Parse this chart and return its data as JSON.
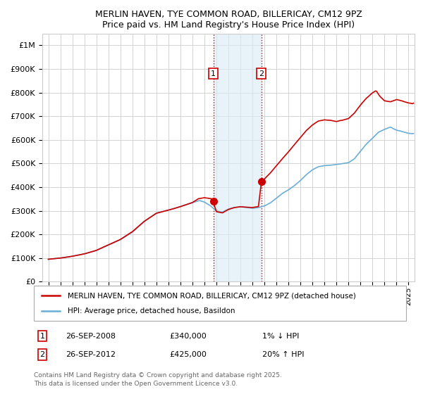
{
  "title": "MERLIN HAVEN, TYE COMMON ROAD, BILLERICAY, CM12 9PZ",
  "subtitle": "Price paid vs. HM Land Registry's House Price Index (HPI)",
  "ylim": [
    0,
    1050000
  ],
  "yticks": [
    0,
    100000,
    200000,
    300000,
    400000,
    500000,
    600000,
    700000,
    800000,
    900000,
    1000000
  ],
  "ytick_labels": [
    "£0",
    "£100K",
    "£200K",
    "£300K",
    "£400K",
    "£500K",
    "£600K",
    "£700K",
    "£800K",
    "£900K",
    "£1M"
  ],
  "background_color": "#ffffff",
  "grid_color": "#cccccc",
  "sale1_x": 2008.74,
  "sale1_price": 340000,
  "sale1_label": "1",
  "sale1_date_str": "26-SEP-2008",
  "sale1_pct_str": "1% ↓ HPI",
  "sale2_x": 2012.74,
  "sale2_price": 425000,
  "sale2_label": "2",
  "sale2_date_str": "26-SEP-2012",
  "sale2_pct_str": "20% ↑ HPI",
  "shade_color": "#daeaf5",
  "shade_alpha": 0.6,
  "vline_color": "#cc0000",
  "vline_style": ":",
  "hpi_color": "#6aaed6",
  "sold_color": "#cc0000",
  "legend_label1": "MERLIN HAVEN, TYE COMMON ROAD, BILLERICAY, CM12 9PZ (detached house)",
  "legend_label2": "HPI: Average price, detached house, Basildon",
  "footnote1": "Contains HM Land Registry data © Crown copyright and database right 2025.",
  "footnote2": "This data is licensed under the Open Government Licence v3.0.",
  "xstart": 1994.5,
  "xend": 2025.5,
  "label1_price_str": "£340,000",
  "label2_price_str": "£425,000"
}
